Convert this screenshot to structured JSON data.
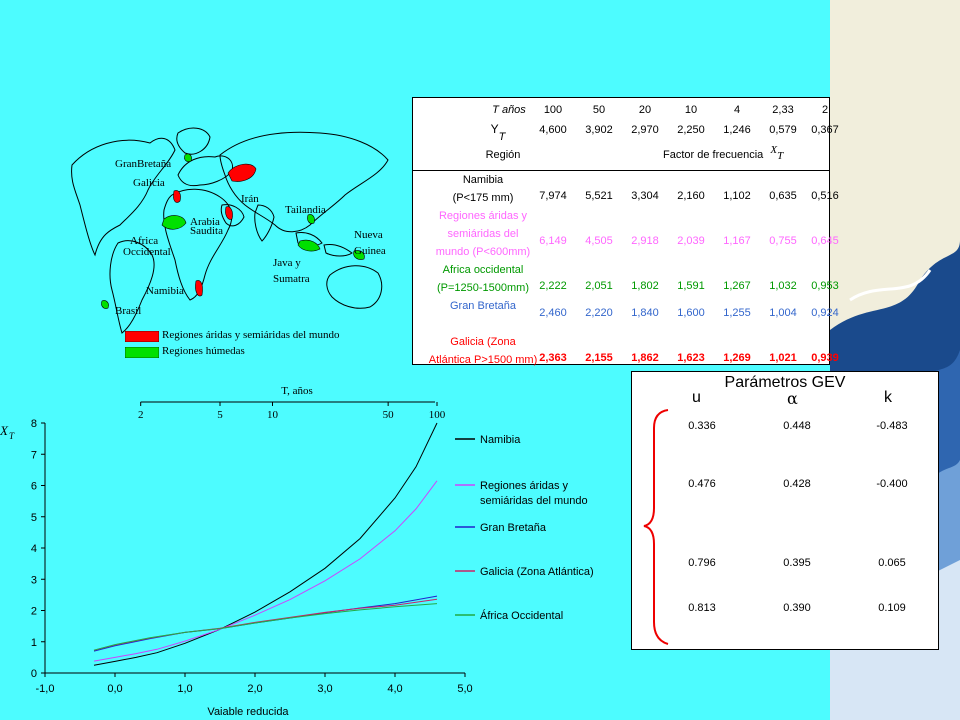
{
  "map": {
    "labels": {
      "gran_bretana": "GranBretaña",
      "galicia": "Galicia",
      "iran": "Irán",
      "arabia": "Arabia",
      "saudita": "Saudita",
      "tailandia": "Tailandia",
      "africa": "Africa",
      "occidental": "Occidental",
      "nueva": "Nueva",
      "guinea": "Guinea",
      "java": "Java y",
      "sumatra": "Sumatra",
      "namibia": "Namibia",
      "brasil": "Brasil"
    },
    "legend": {
      "arid": "Regiones áridas y semiáridas del mundo",
      "humid": "Regiones húmedas",
      "arid_color": "#ff0000",
      "humid_color": "#00e000"
    }
  },
  "table": {
    "header_t": "T años",
    "t_values": [
      "100",
      "50",
      "20",
      "10",
      "4",
      "2,33",
      "2"
    ],
    "header_y": "Y",
    "header_y_sub": "T",
    "y_values": [
      "4,600",
      "3,902",
      "2,970",
      "2,250",
      "1,246",
      "0,579",
      "0,367"
    ],
    "header_region": "Región",
    "header_factor": "Factor de frecuencia",
    "header_factor_sym": "X",
    "header_factor_sub": "T",
    "rows": [
      {
        "label1": "Namibia",
        "label2": "(P<175 mm)",
        "label3": "",
        "color": "#000000",
        "values": [
          "7,974",
          "5,521",
          "3,304",
          "2,160",
          "1,102",
          "0,635",
          "0,516"
        ]
      },
      {
        "label1": "Regiones áridas  y",
        "label2": "semiáridas del",
        "label3": "mundo (P<600mm)",
        "color": "#ff66ff",
        "values": [
          "6,149",
          "4,505",
          "2,918",
          "2,039",
          "1,167",
          "0,755",
          "0,645"
        ]
      },
      {
        "label1": "Africa occidental",
        "label2": "(P=1250-1500mm)",
        "label3": "",
        "color": "#009900",
        "values": [
          "2,222",
          "2,051",
          "1,802",
          "1,591",
          "1,267",
          "1,032",
          "0,953"
        ]
      },
      {
        "label1": "Gran Bretaña",
        "label2": "",
        "label3": "",
        "color": "#3366cc",
        "values": [
          "2,460",
          "2,220",
          "1,840",
          "1,600",
          "1,255",
          "1,004",
          "0,924"
        ]
      },
      {
        "label1": "Galicia (Zona",
        "label2": "Atlántica P>1500 mm)",
        "label3": "",
        "color": "#ff0000",
        "values": [
          "2,363",
          "2,155",
          "1,862",
          "1,623",
          "1,269",
          "1,021",
          "0,939"
        ]
      }
    ]
  },
  "gev": {
    "title": "Parámetros GEV",
    "col_u": "u",
    "col_alpha": "α",
    "col_k": "k",
    "rows": [
      [
        "0.336",
        "0.448",
        "-0.483"
      ],
      [
        "0.476",
        "0.428",
        "-0.400"
      ],
      [
        "0.796",
        "0.395",
        "0.065"
      ],
      [
        "0.813",
        "0.390",
        "0.109"
      ]
    ]
  },
  "chart_data": {
    "type": "line",
    "xlabel": "Vaiable reducida",
    "ylabel": "X",
    "ylabel_sub": "T",
    "top_axis_label": "T, años",
    "top_ticks": [
      {
        "label": "2",
        "y": 0.367
      },
      {
        "label": "5",
        "y": 1.5
      },
      {
        "label": "10",
        "y": 2.25
      },
      {
        "label": "50",
        "y": 3.902
      },
      {
        "label": "100",
        "y": 4.6
      }
    ],
    "xlim": [
      -1.0,
      5.0
    ],
    "ylim": [
      0,
      8
    ],
    "x_ticks": [
      "-1,0",
      "0,0",
      "1,0",
      "2,0",
      "3,0",
      "4,0",
      "5,0"
    ],
    "y_ticks": [
      "0",
      "1",
      "2",
      "3",
      "4",
      "5",
      "6",
      "7",
      "8"
    ],
    "series": [
      {
        "name": "Namibia",
        "color": "#000000",
        "x": [
          -0.3,
          0.0,
          0.3,
          0.6,
          1.0,
          1.5,
          2.0,
          2.5,
          3.0,
          3.5,
          4.0,
          4.3,
          4.6
        ],
        "y": [
          0.25,
          0.37,
          0.5,
          0.65,
          0.95,
          1.4,
          1.95,
          2.6,
          3.35,
          4.3,
          5.6,
          6.6,
          8.0
        ]
      },
      {
        "name": "Regiones áridas y semiáridas del mundo",
        "color": "#cc44ff",
        "x": [
          -0.3,
          0.0,
          0.3,
          0.6,
          1.0,
          1.5,
          2.0,
          2.5,
          3.0,
          3.5,
          4.0,
          4.3,
          4.6
        ],
        "y": [
          0.38,
          0.5,
          0.62,
          0.76,
          1.02,
          1.4,
          1.85,
          2.35,
          2.95,
          3.65,
          4.55,
          5.25,
          6.15
        ]
      },
      {
        "name": "Gran Bretaña",
        "color": "#2222cc",
        "x": [
          -0.3,
          0.0,
          0.5,
          1.0,
          1.5,
          2.0,
          2.5,
          3.0,
          3.5,
          4.0,
          4.6
        ],
        "y": [
          0.7,
          0.87,
          1.1,
          1.3,
          1.42,
          1.6,
          1.76,
          1.93,
          2.08,
          2.22,
          2.46
        ]
      },
      {
        "name": "Galicia (Zona Atlántica)",
        "color": "#cc2266",
        "x": [
          -0.3,
          0.0,
          0.5,
          1.0,
          1.5,
          2.0,
          2.5,
          3.0,
          3.5,
          4.0,
          4.6
        ],
        "y": [
          0.73,
          0.9,
          1.12,
          1.3,
          1.43,
          1.62,
          1.78,
          1.94,
          2.07,
          2.17,
          2.36
        ]
      },
      {
        "name": "África Occidental",
        "color": "#22aa44",
        "x": [
          -0.3,
          0.0,
          0.5,
          1.0,
          1.5,
          2.0,
          2.5,
          3.0,
          3.5,
          4.0,
          4.6
        ],
        "y": [
          0.73,
          0.91,
          1.13,
          1.3,
          1.42,
          1.6,
          1.76,
          1.9,
          2.02,
          2.12,
          2.22
        ]
      }
    ]
  }
}
